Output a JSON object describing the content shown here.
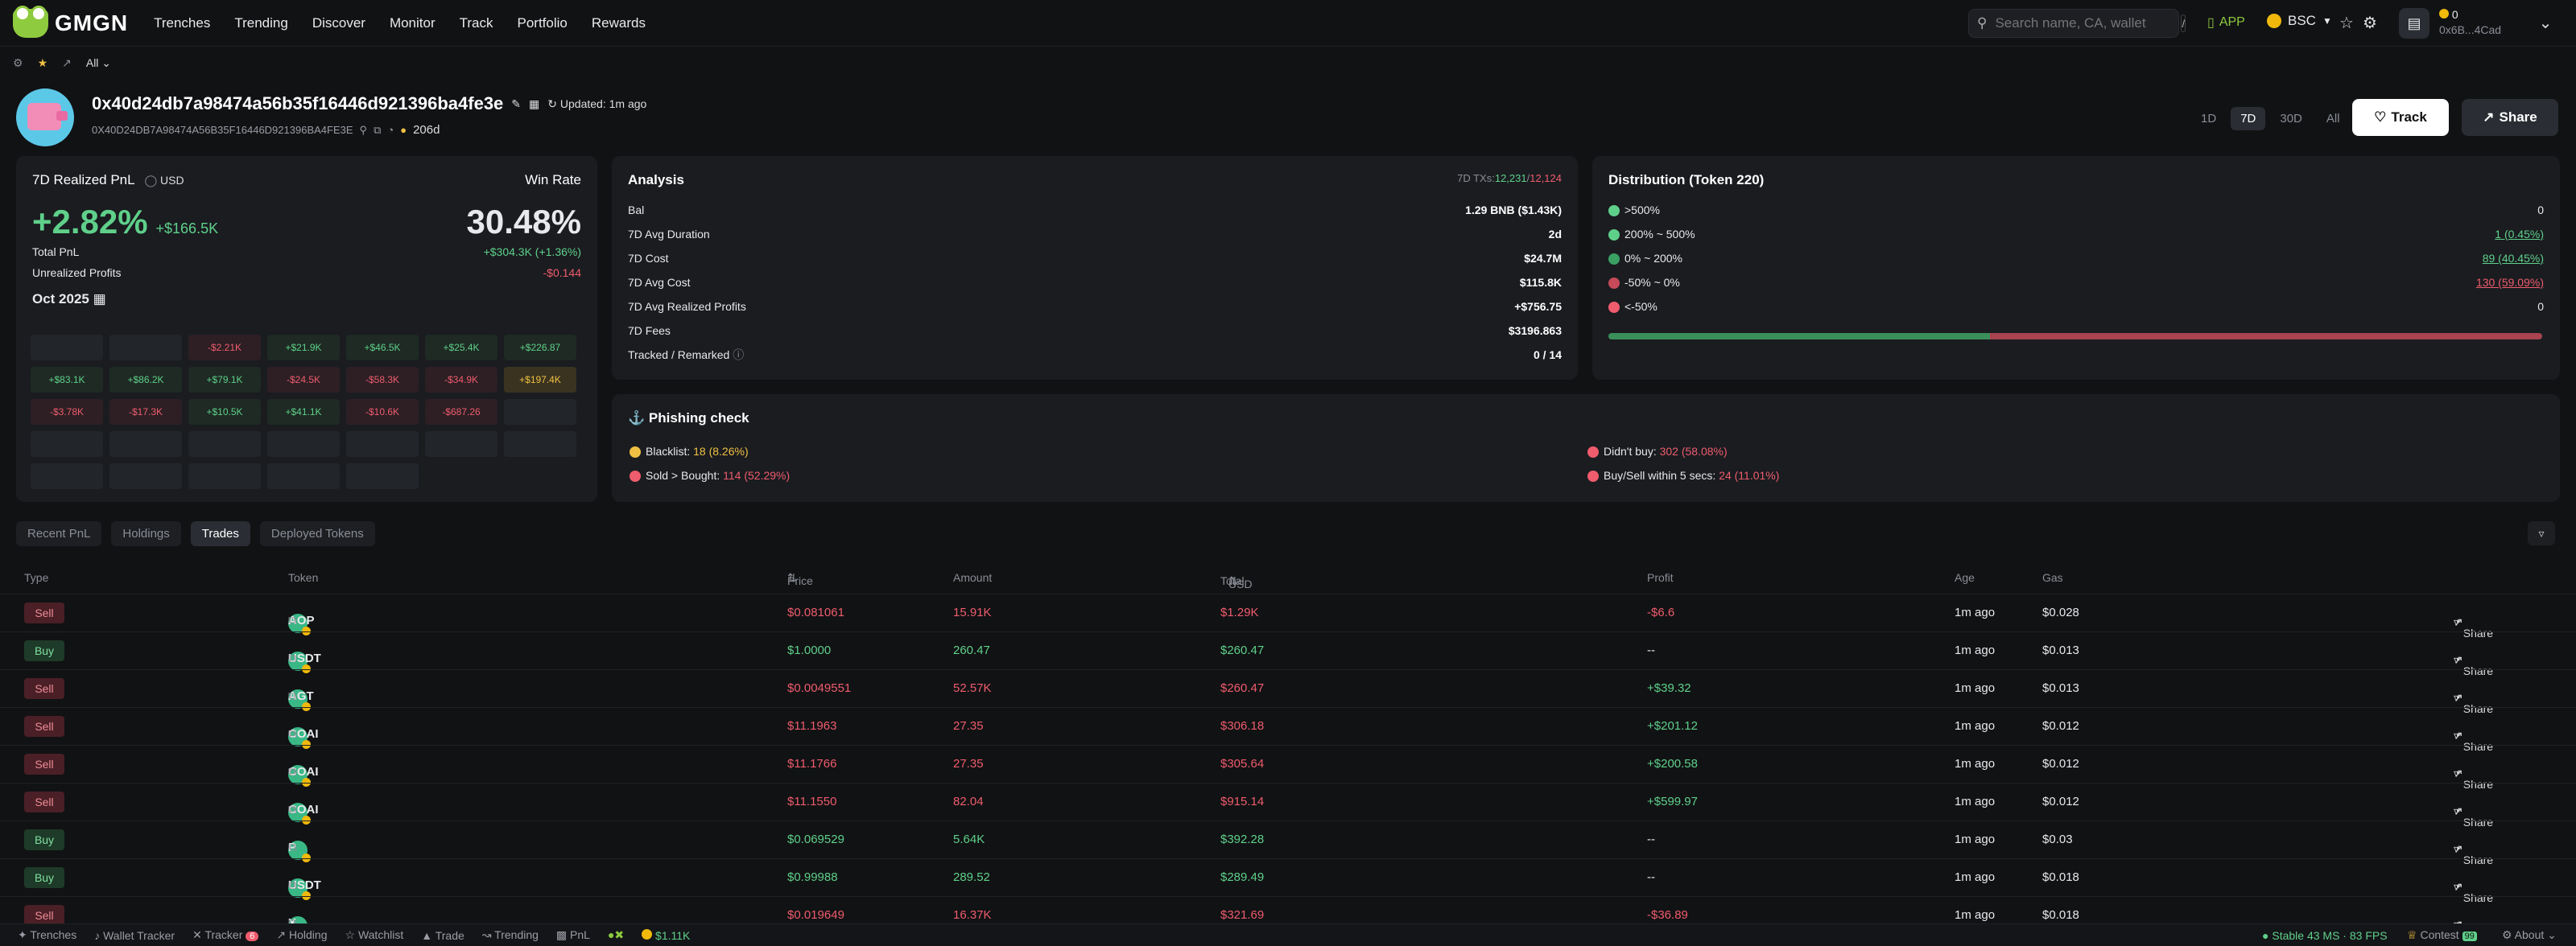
{
  "nav": {
    "brand": "GMGN",
    "items": [
      "Trenches",
      "Trending",
      "Discover",
      "Monitor",
      "Track",
      "Portfolio",
      "Rewards"
    ]
  },
  "search": {
    "placeholder": "Search name, CA, wallet",
    "shortcut": "/"
  },
  "app_label": "APP",
  "chain": "BSC",
  "wallet": {
    "balance": "0",
    "short": "0x6B...4Cad"
  },
  "subbar": {
    "filter": "All"
  },
  "profile": {
    "address": "0x40d24db7a98474a56b35f16446d921396ba4fe3e",
    "updated": "Updated: 1m ago",
    "address_upper": "0X40D24DB7A98474A56B35F16446D921396BA4FE3E",
    "days": "206d"
  },
  "periods": [
    "1D",
    "7D",
    "30D",
    "All"
  ],
  "actions": {
    "track": "Track",
    "share": "Share"
  },
  "pnl": {
    "title": "7D Realized PnL",
    "currency": "USD",
    "winrate_label": "Win Rate",
    "pct": "+2.82%",
    "usd": "+$166.5K",
    "winrate": "30.48%",
    "total_label": "Total PnL",
    "total": "+$304.3K (+1.36%)",
    "unreal_label": "Unrealized Profits",
    "unreal": "-$0.144",
    "month": "Oct 2025"
  },
  "calendar": [
    [
      "",
      "",
      "-$2.21K",
      "+$21.9K",
      "+$46.5K",
      "+$25.4K",
      "+$226.87"
    ],
    [
      "+$83.1K",
      "+$86.2K",
      "+$79.1K",
      "-$24.5K",
      "-$58.3K",
      "-$34.9K",
      "+$197.4K"
    ],
    [
      "-$3.78K",
      "-$17.3K",
      "+$10.5K",
      "+$41.1K",
      "-$10.6K",
      "-$687.26",
      ""
    ],
    [
      "",
      "",
      "",
      "",
      "",
      "",
      ""
    ],
    [
      "",
      "",
      "",
      "",
      "",
      "",
      ""
    ]
  ],
  "calendar_kinds": [
    [
      "e",
      "e",
      "r",
      "g",
      "g",
      "g",
      "g"
    ],
    [
      "g",
      "g",
      "g",
      "r",
      "r",
      "r",
      "y"
    ],
    [
      "r",
      "r",
      "g",
      "g",
      "r",
      "r",
      "e"
    ],
    [
      "e",
      "e",
      "e",
      "e",
      "e",
      "e",
      "e"
    ],
    [
      "e",
      "e",
      "e",
      "e",
      "e",
      "",
      ""
    ]
  ],
  "analysis": {
    "title": "Analysis",
    "txs_label": "7D TXs:",
    "txs_buy": "12,231",
    "txs_sep": "/",
    "txs_sell": "12,124",
    "rows": [
      {
        "label": "Bal",
        "value": "1.29 BNB ($1.43K)"
      },
      {
        "label": "7D Avg Duration",
        "value": "2d"
      },
      {
        "label": "7D Cost",
        "value": "$24.7M"
      },
      {
        "label": "7D Avg Cost",
        "value": "$115.8K"
      },
      {
        "label": "7D Avg Realized Profits",
        "value": "+$756.75"
      },
      {
        "label": "7D Fees",
        "value": "$3196.863"
      },
      {
        "label": "Tracked / Remarked",
        "value": "0 / 14"
      }
    ]
  },
  "distribution": {
    "title": "Distribution (Token 220)",
    "rows": [
      {
        "label": ">500%",
        "value": "0",
        "color": "#5fd08a"
      },
      {
        "label": "200% ~ 500%",
        "value": "1 (0.45%)",
        "color": "#5fd08a"
      },
      {
        "label": "0% ~ 200%",
        "value": "89 (40.45%)",
        "color": "#3a9f63"
      },
      {
        "label": "-50% ~ 0%",
        "value": "130 (59.09%)",
        "color": "#c74a5a"
      },
      {
        "label": "<-50%",
        "value": "0",
        "color": "#ef5c6d"
      }
    ],
    "green_pct": 40.9
  },
  "phishing": {
    "title": "Phishing check",
    "blacklist_label": "Blacklist:",
    "blacklist": "18 (8.26%)",
    "sold_label": "Sold > Bought:",
    "sold": "114 (52.29%)",
    "didnt_label": "Didn't buy:",
    "didnt": "302 (58.08%)",
    "fast_label": "Buy/Sell within 5 secs:",
    "fast": "24 (11.01%)"
  },
  "tabs": [
    "Recent PnL",
    "Holdings",
    "Trades",
    "Deployed Tokens"
  ],
  "table": {
    "headers": {
      "type": "Type",
      "token": "Token",
      "price": "Price",
      "amount": "Amount",
      "total": "Total",
      "currency": "USD",
      "profit": "Profit",
      "age": "Age",
      "gas": "Gas"
    },
    "rows": [
      {
        "type": "Sell",
        "token": "AOP",
        "price": "$0.081061",
        "amount": "15.91K",
        "total": "$1.29K",
        "profit": "-$6.6",
        "age": "1m ago",
        "gas": "$0.028"
      },
      {
        "type": "Buy",
        "token": "USDT",
        "price": "$1.0000",
        "amount": "260.47",
        "total": "$260.47",
        "profit": "--",
        "age": "1m ago",
        "gas": "$0.013"
      },
      {
        "type": "Sell",
        "token": "AGT",
        "price": "$0.0049551",
        "amount": "52.57K",
        "total": "$260.47",
        "profit": "+$39.32",
        "age": "1m ago",
        "gas": "$0.013"
      },
      {
        "type": "Sell",
        "token": "COAI",
        "price": "$11.1963",
        "amount": "27.35",
        "total": "$306.18",
        "profit": "+$201.12",
        "age": "1m ago",
        "gas": "$0.012"
      },
      {
        "type": "Sell",
        "token": "COAI",
        "price": "$11.1766",
        "amount": "27.35",
        "total": "$305.64",
        "profit": "+$200.58",
        "age": "1m ago",
        "gas": "$0.012"
      },
      {
        "type": "Sell",
        "token": "COAI",
        "price": "$11.1550",
        "amount": "82.04",
        "total": "$915.14",
        "profit": "+$599.97",
        "age": "1m ago",
        "gas": "$0.012"
      },
      {
        "type": "Buy",
        "token": "P",
        "price": "$0.069529",
        "amount": "5.64K",
        "total": "$392.28",
        "profit": "--",
        "age": "1m ago",
        "gas": "$0.03"
      },
      {
        "type": "Buy",
        "token": "USDT",
        "price": "$0.99988",
        "amount": "289.52",
        "total": "$289.49",
        "profit": "--",
        "age": "1m ago",
        "gas": "$0.018"
      },
      {
        "type": "Sell",
        "token": "X",
        "price": "$0.019649",
        "amount": "16.37K",
        "total": "$321.69",
        "profit": "-$36.89",
        "age": "1m ago",
        "gas": "$0.018"
      }
    ],
    "share_label": "Share"
  },
  "footer": {
    "items": [
      "Trenches",
      "Wallet Tracker",
      "Tracker",
      "Holding",
      "Watchlist",
      "Trade",
      "Trending",
      "PnL"
    ],
    "tracker_badge": "6",
    "price": "$1.11K",
    "status": "Stable",
    "latency": "43 MS · 83 FPS",
    "contest": "Contest",
    "contest_badge": "99",
    "about": "About"
  }
}
